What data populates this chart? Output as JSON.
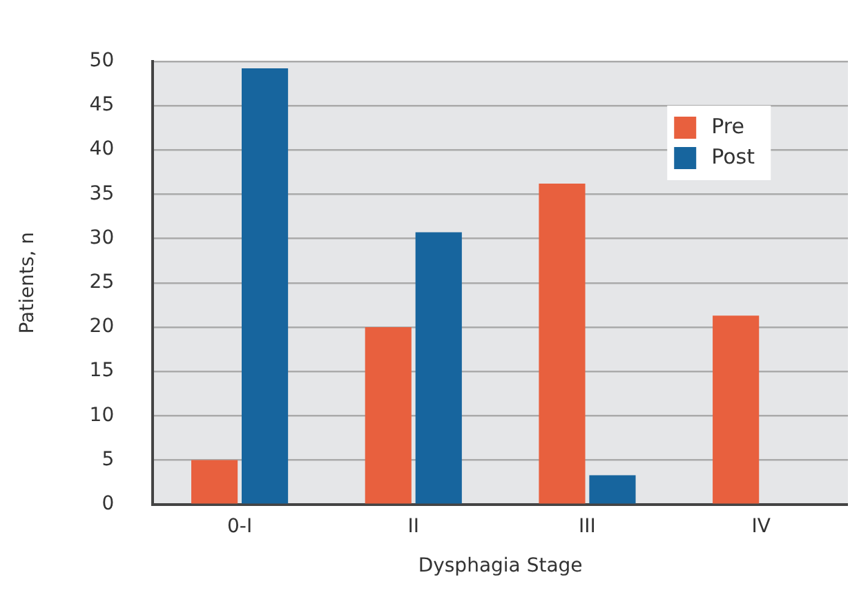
{
  "chart_data": {
    "type": "bar",
    "xlabel": "Dysphagia Stage",
    "ylabel": "Patients, n",
    "categories": [
      "0-I",
      "II",
      "III",
      "IV"
    ],
    "series": [
      {
        "name": "Pre",
        "color": "#e8603e",
        "values": [
          5,
          20,
          36.2,
          21.3
        ]
      },
      {
        "name": "Post",
        "color": "#17659e",
        "values": [
          49.2,
          30.7,
          3.3,
          0
        ]
      }
    ],
    "ylim": [
      0,
      50
    ],
    "yticks": [
      0,
      5,
      10,
      15,
      20,
      25,
      30,
      35,
      40,
      45,
      50
    ],
    "grid": "y",
    "legend": "top right"
  }
}
